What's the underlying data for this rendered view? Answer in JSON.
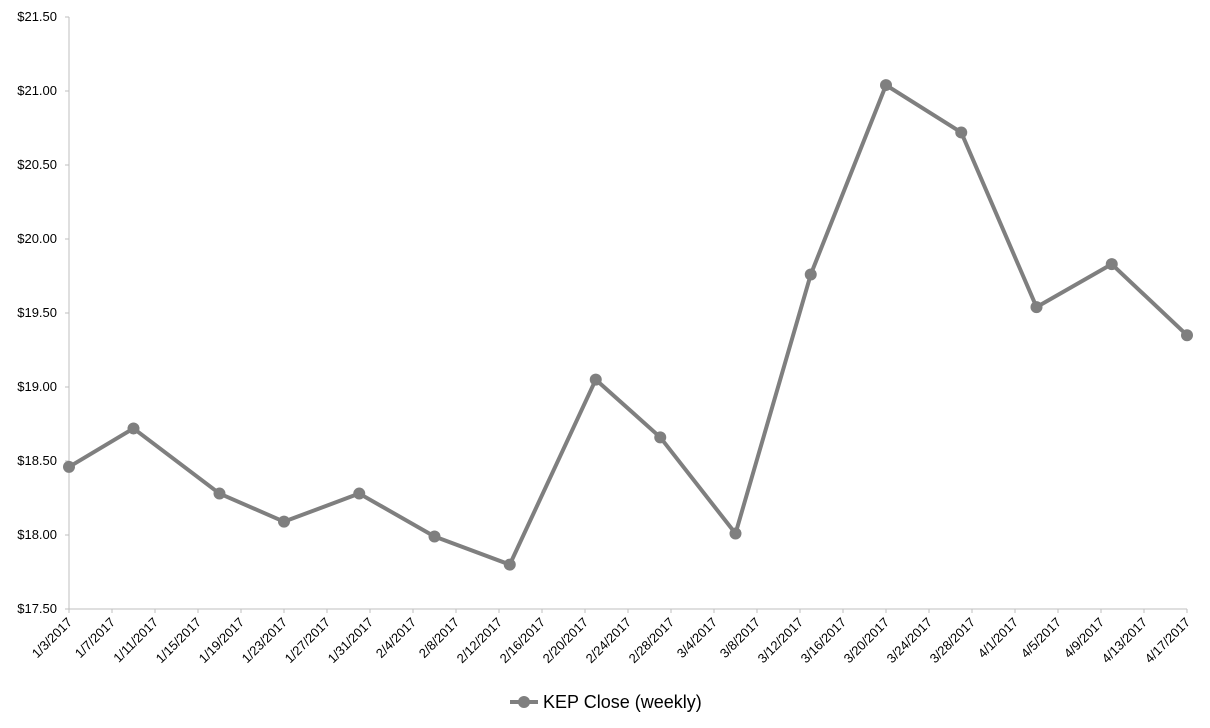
{
  "chart_data": {
    "type": "line",
    "x": [
      "1/3/2017",
      "1/9/2017",
      "1/17/2017",
      "1/23/2017",
      "1/30/2017",
      "2/6/2017",
      "2/13/2017",
      "2/21/2017",
      "2/27/2017",
      "3/6/2017",
      "3/13/2017",
      "3/20/2017",
      "3/27/2017",
      "4/3/2017",
      "4/10/2017",
      "4/17/2017"
    ],
    "series": [
      {
        "name": "KEP Close (weekly)",
        "color": "#7f7f7f",
        "values": [
          18.46,
          18.72,
          18.28,
          18.09,
          18.28,
          17.99,
          17.8,
          19.05,
          18.66,
          18.01,
          19.76,
          21.04,
          20.72,
          19.54,
          19.83,
          19.35
        ]
      }
    ],
    "xlim": [
      "1/3/2017",
      "4/17/2017"
    ],
    "xticks": [
      "1/3/2017",
      "1/7/2017",
      "1/11/2017",
      "1/15/2017",
      "1/19/2017",
      "1/23/2017",
      "1/27/2017",
      "1/31/2017",
      "2/4/2017",
      "2/8/2017",
      "2/12/2017",
      "2/16/2017",
      "2/20/2017",
      "2/24/2017",
      "2/28/2017",
      "3/4/2017",
      "3/8/2017",
      "3/12/2017",
      "3/16/2017",
      "3/20/2017",
      "3/24/2017",
      "3/28/2017",
      "4/1/2017",
      "4/5/2017",
      "4/9/2017",
      "4/13/2017",
      "4/17/2017"
    ],
    "ylim": [
      17.5,
      21.5
    ],
    "yticks": [
      {
        "value": 17.5,
        "label": "$17.50"
      },
      {
        "value": 18,
        "label": "$18.00"
      },
      {
        "value": 18.5,
        "label": "$18.50"
      },
      {
        "value": 19,
        "label": "$19.00"
      },
      {
        "value": 19.5,
        "label": "$19.50"
      },
      {
        "value": 20,
        "label": "$20.00"
      },
      {
        "value": 20.5,
        "label": "$20.50"
      },
      {
        "value": 21,
        "label": "$21.00"
      },
      {
        "value": 21.5,
        "label": "$21.50"
      }
    ],
    "grid": false,
    "legend": "bottom"
  }
}
